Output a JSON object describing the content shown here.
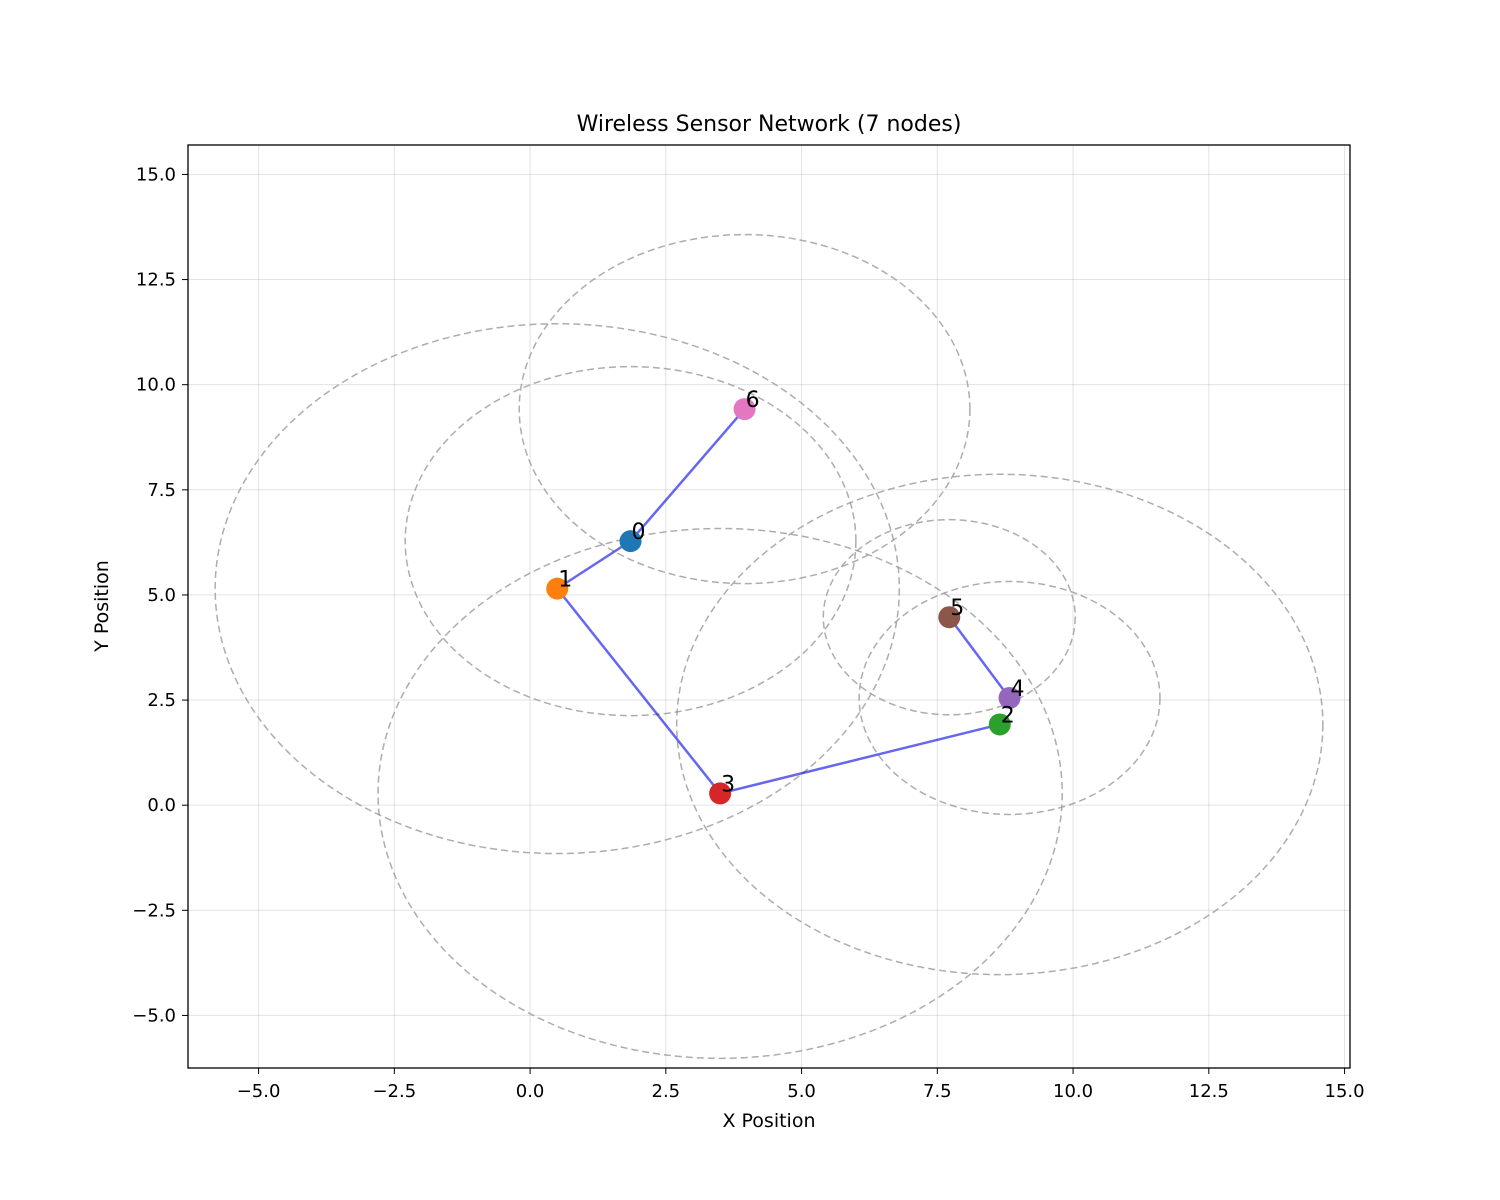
{
  "chart_data": {
    "type": "scatter",
    "title": "Wireless Sensor Network (7 nodes)",
    "xlabel": "X Position",
    "ylabel": "Y Position",
    "xlim": [
      -6.3,
      15.1
    ],
    "ylim": [
      -6.25,
      15.7
    ],
    "xticks": [
      -5.0,
      -2.5,
      0.0,
      2.5,
      5.0,
      7.5,
      10.0,
      12.5,
      15.0
    ],
    "yticks": [
      -5.0,
      -2.5,
      0.0,
      2.5,
      5.0,
      7.5,
      10.0,
      12.5,
      15.0
    ],
    "grid": true,
    "nodes": [
      {
        "id": "0",
        "x": 1.85,
        "y": 6.28,
        "range": 4.15,
        "color": "#1f77b4"
      },
      {
        "id": "1",
        "x": 0.5,
        "y": 5.15,
        "range": 6.3,
        "color": "#ff7f0e"
      },
      {
        "id": "2",
        "x": 8.65,
        "y": 1.92,
        "range": 5.95,
        "color": "#2ca02c"
      },
      {
        "id": "3",
        "x": 3.5,
        "y": 0.28,
        "range": 6.3,
        "color": "#d62728"
      },
      {
        "id": "4",
        "x": 8.83,
        "y": 2.55,
        "range": 2.77,
        "color": "#9467bd"
      },
      {
        "id": "5",
        "x": 7.72,
        "y": 4.47,
        "range": 2.32,
        "color": "#8c564b"
      },
      {
        "id": "6",
        "x": 3.95,
        "y": 9.42,
        "range": 4.15,
        "color": "#e377c2"
      }
    ],
    "links": [
      [
        "6",
        "0"
      ],
      [
        "0",
        "1"
      ],
      [
        "1",
        "3"
      ],
      [
        "3",
        "2"
      ],
      [
        "5",
        "4"
      ]
    ],
    "link_color": "#0000e6",
    "range_color": "#999999"
  }
}
